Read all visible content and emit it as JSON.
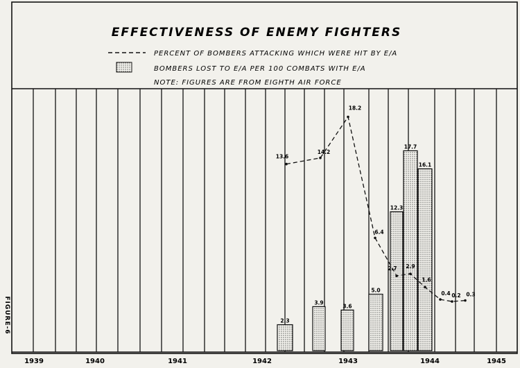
{
  "chart_data": {
    "type": "bar",
    "title": "EFFECTIVENESS OF ENEMY FIGHTERS",
    "side_label": "FIGURE-6",
    "note": "NOTE: FIGURES ARE FROM EIGHTH AIR FORCE",
    "x_tick_labels": [
      "1939",
      "1940",
      "1941",
      "1942",
      "1943",
      "1944",
      "1945"
    ],
    "grid": true,
    "colors": {
      "ink": "#111111",
      "paper": "#f2f1ec"
    },
    "series": [
      {
        "name": "PERCENT OF BOMBERS ATTACKING WHICH WERE HIT BY E/A",
        "kind": "line",
        "style": "dashed",
        "x": [
          "1942-11",
          "1943-03",
          "1943-05",
          "1943-09",
          "1943-11",
          "1944-01",
          "1944-03",
          "1944-05",
          "1944-07",
          "1944-09"
        ],
        "values": [
          13.6,
          14.2,
          18.2,
          6.4,
          2.7,
          2.9,
          1.6,
          0.4,
          0.2,
          0.3
        ],
        "labels": [
          "13.6",
          "14.2",
          "18.2",
          "6.4",
          "2.7",
          "2.9",
          "1.6",
          "0.4",
          "0.2",
          "0.3"
        ]
      },
      {
        "name": "BOMBERS LOST TO E/A PER 100 COMBATS WITH E/A",
        "kind": "bar",
        "x": [
          "1942-Q4",
          "1943-Q1",
          "1943-Q2",
          "1943-Q3",
          "1943-Q4a",
          "1943-Q4b",
          "1944-Q1"
        ],
        "values": [
          2.3,
          3.9,
          3.6,
          5.0,
          12.3,
          17.7,
          16.1
        ],
        "labels": [
          "2.3",
          "3.9",
          "3.6",
          "5.0",
          "12.3",
          "17.7",
          "16.1"
        ]
      }
    ]
  }
}
